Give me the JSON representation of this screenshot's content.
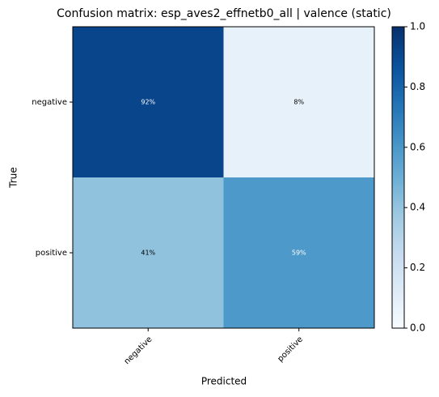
{
  "chart_data": {
    "type": "heatmap",
    "title": "Confusion matrix: esp_aves2_effnetb0_all | valence (static)",
    "xlabel": "Predicted",
    "ylabel": "True",
    "categories": [
      "negative",
      "positive"
    ],
    "y_categories": [
      "negative",
      "positive"
    ],
    "values": [
      [
        0.92,
        0.08
      ],
      [
        0.41,
        0.59
      ]
    ],
    "value_labels": [
      [
        "92%",
        "8%"
      ],
      [
        "41%",
        "59%"
      ]
    ],
    "colormap": "Blues",
    "clim": [
      0,
      1
    ],
    "cticks": [
      {
        "value": 0,
        "label": "0.0"
      },
      0.2,
      0.4,
      0.6,
      0.8,
      {
        "value": 1,
        "label": "1.0"
      }
    ]
  }
}
